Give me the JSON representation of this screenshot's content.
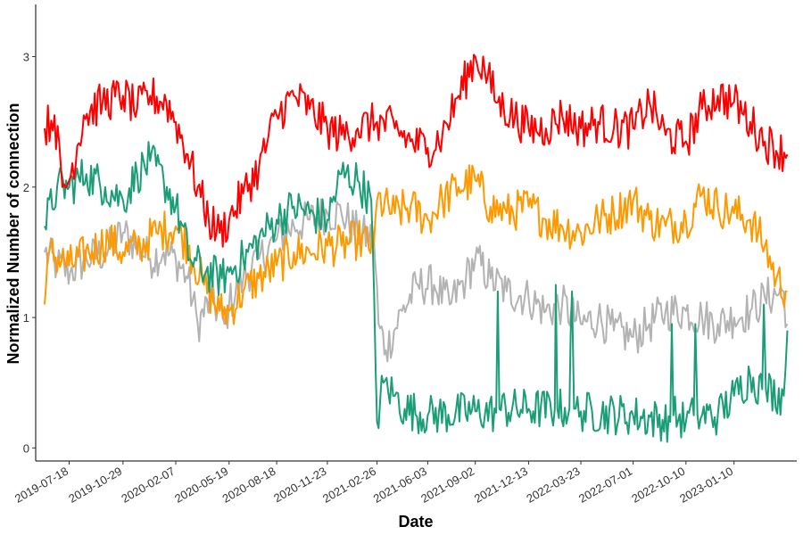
{
  "chart_data": {
    "type": "line",
    "title": "",
    "xlabel": "Date",
    "ylabel": "Normalized Number of connection",
    "xlim": [
      "2019-05-15",
      "2023-05-10"
    ],
    "ylim": [
      -0.1,
      3.4
    ],
    "x_tick_labels": [
      "2019-07-18",
      "2019-10-29",
      "2020-02-07",
      "2020-05-19",
      "2020-08-18",
      "2020-11-23",
      "2021-02-26",
      "2021-06-03",
      "2021-09-02",
      "2021-12-13",
      "2022-03-23",
      "2022-07-01",
      "2022-10-10",
      "2023-01-10"
    ],
    "y_ticks": [
      0,
      1,
      2,
      3
    ],
    "grid": false,
    "legend": "none",
    "series": [
      {
        "color": "#B3B3B3",
        "points": [
          [
            "2019-06-01",
            1.5
          ],
          [
            "2019-06-25",
            1.4
          ],
          [
            "2019-07-20",
            1.35
          ],
          [
            "2019-08-20",
            1.45
          ],
          [
            "2019-09-25",
            1.5
          ],
          [
            "2019-10-29",
            1.65
          ],
          [
            "2019-11-25",
            1.55
          ],
          [
            "2019-12-20",
            1.45
          ],
          [
            "2020-01-15",
            1.5
          ],
          [
            "2020-02-07",
            1.45
          ],
          [
            "2020-03-01",
            1.3
          ],
          [
            "2020-03-20",
            0.95
          ],
          [
            "2020-04-15",
            1.15
          ],
          [
            "2020-05-10",
            0.95
          ],
          [
            "2020-05-19",
            1.1
          ],
          [
            "2020-06-15",
            1.3
          ],
          [
            "2020-07-15",
            1.45
          ],
          [
            "2020-08-18",
            1.6
          ],
          [
            "2020-09-20",
            1.7
          ],
          [
            "2020-10-20",
            1.75
          ],
          [
            "2020-11-23",
            1.8
          ],
          [
            "2020-12-20",
            1.8
          ],
          [
            "2021-01-20",
            1.65
          ],
          [
            "2021-02-20",
            1.6
          ],
          [
            "2021-03-01",
            0.95
          ],
          [
            "2021-03-15",
            0.75
          ],
          [
            "2021-04-15",
            1.05
          ],
          [
            "2021-05-15",
            1.25
          ],
          [
            "2021-06-15",
            1.25
          ],
          [
            "2021-07-15",
            1.1
          ],
          [
            "2021-08-15",
            1.3
          ],
          [
            "2021-09-02",
            1.45
          ],
          [
            "2021-10-01",
            1.3
          ],
          [
            "2021-11-01",
            1.2
          ],
          [
            "2021-12-13",
            1.15
          ],
          [
            "2022-01-15",
            1.05
          ],
          [
            "2022-02-15",
            1.1
          ],
          [
            "2022-03-23",
            0.95
          ],
          [
            "2022-04-25",
            1.0
          ],
          [
            "2022-05-25",
            0.9
          ],
          [
            "2022-07-01",
            0.85
          ],
          [
            "2022-08-01",
            0.95
          ],
          [
            "2022-09-01",
            1.05
          ],
          [
            "2022-10-10",
            1.05
          ],
          [
            "2022-11-10",
            1.0
          ],
          [
            "2022-12-10",
            0.95
          ],
          [
            "2023-01-10",
            1.0
          ],
          [
            "2023-02-10",
            1.05
          ],
          [
            "2023-03-10",
            1.15
          ],
          [
            "2023-04-15",
            1.2
          ],
          [
            "2023-04-22",
            0.95
          ]
        ]
      },
      {
        "color": "#FF9900",
        "points": [
          [
            "2019-06-01",
            1.1
          ],
          [
            "2019-06-10",
            1.5
          ],
          [
            "2019-07-18",
            1.4
          ],
          [
            "2019-08-25",
            1.5
          ],
          [
            "2019-10-01",
            1.6
          ],
          [
            "2019-10-29",
            1.5
          ],
          [
            "2019-12-01",
            1.55
          ],
          [
            "2020-01-01",
            1.65
          ],
          [
            "2020-02-07",
            1.7
          ],
          [
            "2020-03-01",
            1.55
          ],
          [
            "2020-04-01",
            1.25
          ],
          [
            "2020-05-01",
            1.05
          ],
          [
            "2020-05-19",
            1.05
          ],
          [
            "2020-06-15",
            1.2
          ],
          [
            "2020-07-15",
            1.3
          ],
          [
            "2020-08-18",
            1.4
          ],
          [
            "2020-09-20",
            1.5
          ],
          [
            "2020-10-20",
            1.5
          ],
          [
            "2020-11-23",
            1.55
          ],
          [
            "2020-12-20",
            1.55
          ],
          [
            "2021-01-20",
            1.6
          ],
          [
            "2021-02-20",
            1.55
          ],
          [
            "2021-02-26",
            1.9
          ],
          [
            "2021-04-01",
            1.8
          ],
          [
            "2021-05-01",
            1.85
          ],
          [
            "2021-06-03",
            1.75
          ],
          [
            "2021-07-01",
            1.9
          ],
          [
            "2021-08-01",
            2.0
          ],
          [
            "2021-09-02",
            2.05
          ],
          [
            "2021-10-01",
            1.85
          ],
          [
            "2021-11-01",
            1.8
          ],
          [
            "2021-12-13",
            1.85
          ],
          [
            "2022-01-15",
            1.75
          ],
          [
            "2022-02-15",
            1.7
          ],
          [
            "2022-03-23",
            1.65
          ],
          [
            "2022-04-25",
            1.75
          ],
          [
            "2022-05-25",
            1.8
          ],
          [
            "2022-07-01",
            1.9
          ],
          [
            "2022-08-01",
            1.75
          ],
          [
            "2022-09-01",
            1.7
          ],
          [
            "2022-10-10",
            1.75
          ],
          [
            "2022-11-10",
            1.95
          ],
          [
            "2022-12-10",
            1.85
          ],
          [
            "2023-01-10",
            1.8
          ],
          [
            "2023-02-10",
            1.75
          ],
          [
            "2023-03-10",
            1.55
          ],
          [
            "2023-04-01",
            1.3
          ],
          [
            "2023-04-22",
            1.2
          ]
        ]
      },
      {
        "color": "#1B9E77",
        "points": [
          [
            "2019-06-01",
            1.7
          ],
          [
            "2019-06-25",
            2.0
          ],
          [
            "2019-07-18",
            2.0
          ],
          [
            "2019-08-20",
            2.1
          ],
          [
            "2019-09-25",
            2.0
          ],
          [
            "2019-10-29",
            1.9
          ],
          [
            "2019-11-25",
            2.1
          ],
          [
            "2019-12-20",
            2.2
          ],
          [
            "2020-01-15",
            2.05
          ],
          [
            "2020-02-07",
            1.85
          ],
          [
            "2020-03-05",
            1.45
          ],
          [
            "2020-04-05",
            1.35
          ],
          [
            "2020-05-05",
            1.3
          ],
          [
            "2020-05-19",
            1.35
          ],
          [
            "2020-06-15",
            1.45
          ],
          [
            "2020-07-15",
            1.6
          ],
          [
            "2020-08-18",
            1.75
          ],
          [
            "2020-09-20",
            1.85
          ],
          [
            "2020-10-20",
            1.8
          ],
          [
            "2020-11-23",
            1.75
          ],
          [
            "2020-12-20",
            2.1
          ],
          [
            "2021-01-20",
            2.05
          ],
          [
            "2021-02-15",
            1.9
          ],
          [
            "2021-02-26",
            0.2
          ],
          [
            "2021-03-10",
            0.5
          ],
          [
            "2021-04-01",
            0.4
          ],
          [
            "2021-04-20",
            0.3
          ],
          [
            "2021-06-03",
            0.25
          ],
          [
            "2021-09-02",
            0.28
          ],
          [
            "2021-10-12",
            0.27
          ],
          [
            "2021-10-15",
            1.2
          ],
          [
            "2021-10-18",
            0.3
          ],
          [
            "2021-12-13",
            0.3
          ],
          [
            "2022-02-01",
            0.3
          ],
          [
            "2022-02-03",
            1.25
          ],
          [
            "2022-02-06",
            0.3
          ],
          [
            "2022-03-01",
            0.3
          ],
          [
            "2022-03-06",
            1.2
          ],
          [
            "2022-03-10",
            0.3
          ],
          [
            "2022-03-23",
            0.28
          ],
          [
            "2022-07-01",
            0.25
          ],
          [
            "2022-09-10",
            0.2
          ],
          [
            "2022-09-13",
            0.95
          ],
          [
            "2022-09-16",
            0.25
          ],
          [
            "2022-10-10",
            0.2
          ],
          [
            "2022-10-25",
            0.25
          ],
          [
            "2022-10-28",
            0.95
          ],
          [
            "2022-11-01",
            0.25
          ],
          [
            "2022-12-10",
            0.25
          ],
          [
            "2023-01-10",
            0.4
          ],
          [
            "2023-02-10",
            0.55
          ],
          [
            "2023-03-05",
            0.45
          ],
          [
            "2023-03-08",
            1.1
          ],
          [
            "2023-03-12",
            0.45
          ],
          [
            "2023-04-15",
            0.4
          ],
          [
            "2023-04-22",
            0.9
          ]
        ]
      },
      {
        "color": "#FF0000",
        "points": [
          [
            "2019-06-01",
            2.45
          ],
          [
            "2019-06-20",
            2.55
          ],
          [
            "2019-07-05",
            2.0
          ],
          [
            "2019-07-18",
            2.05
          ],
          [
            "2019-08-15",
            2.55
          ],
          [
            "2019-09-20",
            2.65
          ],
          [
            "2019-10-29",
            2.7
          ],
          [
            "2019-11-25",
            2.6
          ],
          [
            "2019-12-20",
            2.7
          ],
          [
            "2020-01-20",
            2.65
          ],
          [
            "2020-02-07",
            2.5
          ],
          [
            "2020-03-01",
            2.25
          ],
          [
            "2020-03-20",
            2.0
          ],
          [
            "2020-04-10",
            1.75
          ],
          [
            "2020-05-01",
            1.65
          ],
          [
            "2020-05-19",
            1.75
          ],
          [
            "2020-06-15",
            1.95
          ],
          [
            "2020-07-15",
            2.15
          ],
          [
            "2020-08-18",
            2.55
          ],
          [
            "2020-09-20",
            2.7
          ],
          [
            "2020-10-20",
            2.6
          ],
          [
            "2020-11-23",
            2.45
          ],
          [
            "2020-12-20",
            2.4
          ],
          [
            "2021-01-20",
            2.45
          ],
          [
            "2021-02-26",
            2.5
          ],
          [
            "2021-04-01",
            2.45
          ],
          [
            "2021-05-01",
            2.35
          ],
          [
            "2021-06-03",
            2.3
          ],
          [
            "2021-07-01",
            2.4
          ],
          [
            "2021-08-01",
            2.7
          ],
          [
            "2021-09-02",
            3.0
          ],
          [
            "2021-09-20",
            2.9
          ],
          [
            "2021-10-15",
            2.65
          ],
          [
            "2021-12-13",
            2.45
          ],
          [
            "2022-01-15",
            2.45
          ],
          [
            "2022-02-15",
            2.55
          ],
          [
            "2022-03-23",
            2.45
          ],
          [
            "2022-04-25",
            2.5
          ],
          [
            "2022-05-25",
            2.45
          ],
          [
            "2022-07-01",
            2.45
          ],
          [
            "2022-08-01",
            2.65
          ],
          [
            "2022-09-01",
            2.4
          ],
          [
            "2022-10-10",
            2.35
          ],
          [
            "2022-11-10",
            2.6
          ],
          [
            "2022-12-10",
            2.7
          ],
          [
            "2023-01-10",
            2.65
          ],
          [
            "2023-02-10",
            2.5
          ],
          [
            "2023-03-10",
            2.35
          ],
          [
            "2023-04-22",
            2.25
          ]
        ]
      }
    ]
  }
}
